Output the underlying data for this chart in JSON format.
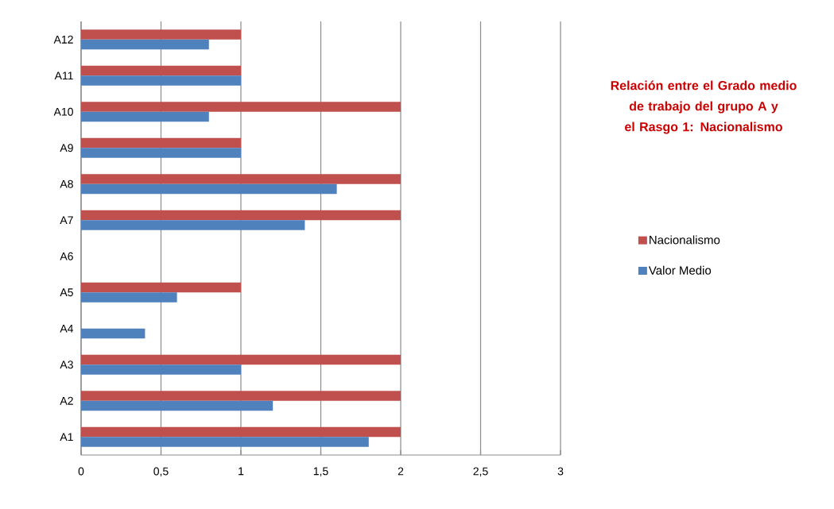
{
  "chart_data": {
    "type": "bar",
    "orientation": "horizontal",
    "title": "Relación entre el Grado medio de trabajo del grupo A y el Rasgo 1: Nacionalismo",
    "categories": [
      "A12",
      "A11",
      "A10",
      "A9",
      "A8",
      "A7",
      "A6",
      "A5",
      "A4",
      "A3",
      "A2",
      "A1"
    ],
    "series": [
      {
        "name": "Nacionalismo",
        "color": "#c0504d",
        "values": [
          1,
          1,
          2,
          1,
          2,
          2,
          0,
          1,
          0,
          2,
          2,
          2
        ]
      },
      {
        "name": "Valor Medio",
        "color": "#4f81bd",
        "values": [
          0.8,
          1,
          0.8,
          1,
          1.6,
          1.4,
          0,
          0.6,
          0.4,
          1,
          1.2,
          1.8
        ]
      }
    ],
    "xlim": [
      0,
      3
    ],
    "xticks": [
      0,
      {
        "value": 0.5,
        "label": "0,5"
      },
      1,
      {
        "value": 1.5,
        "label": "1,5"
      },
      2,
      {
        "value": 2.5,
        "label": "2,5"
      },
      3
    ],
    "grid": "x",
    "legend": "right"
  }
}
